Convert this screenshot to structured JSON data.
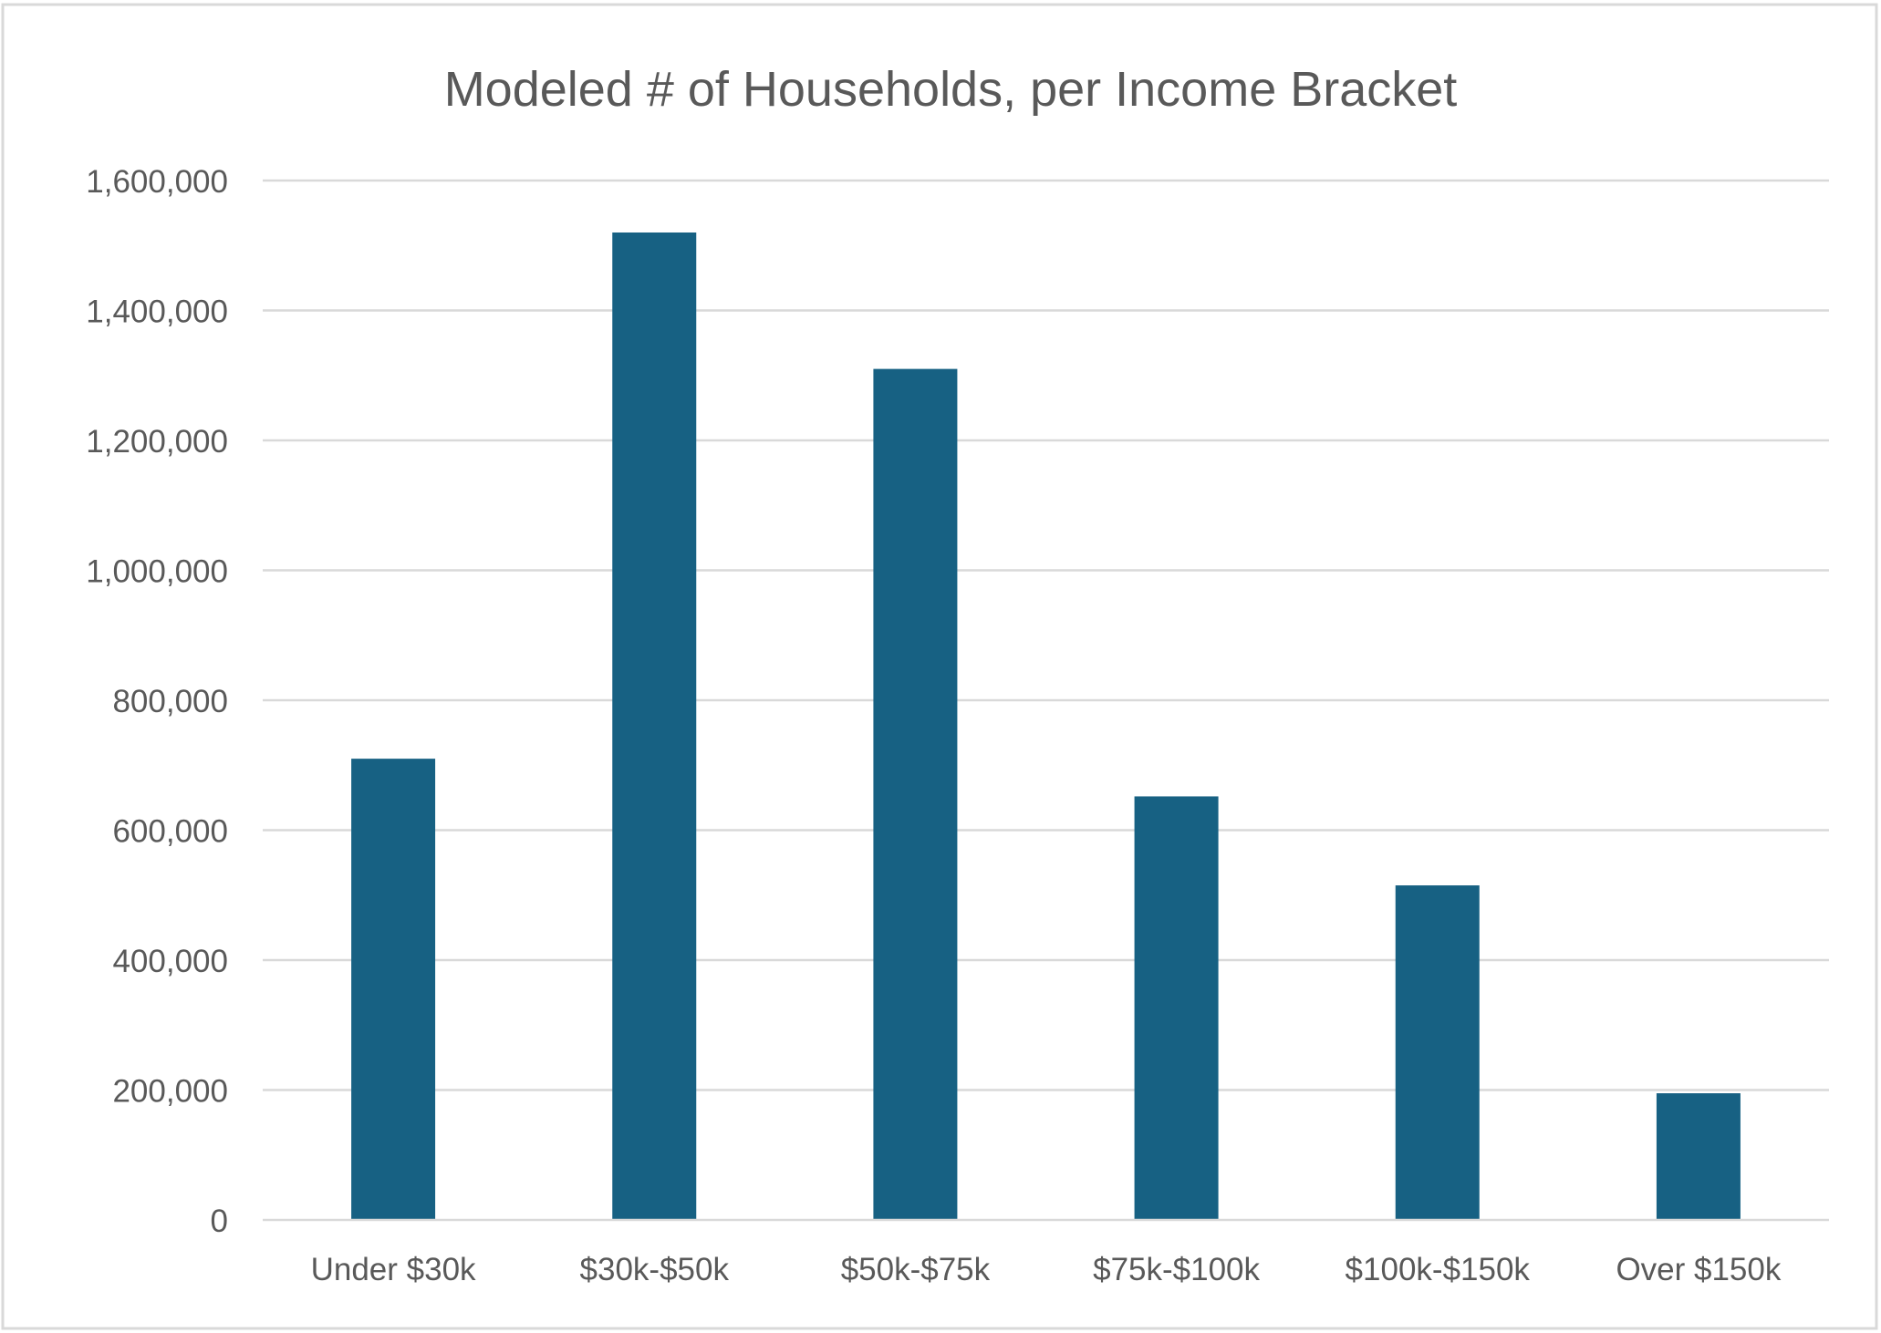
{
  "chart_data": {
    "type": "bar",
    "title": "Modeled # of Households, per Income Bracket",
    "xlabel": "",
    "ylabel": "",
    "categories": [
      "Under $30k",
      "$30k-$50k",
      "$50k-$75k",
      "$75k-$100k",
      "$100k-$150k",
      "Over $150k"
    ],
    "series": [
      {
        "values": [
          710000,
          1520000,
          1310000,
          652000,
          515000,
          195000
        ]
      }
    ],
    "ylim": [
      0,
      1600000
    ],
    "yticks": [
      0,
      200000,
      400000,
      600000,
      800000,
      1000000,
      1200000,
      1400000,
      1600000
    ],
    "ytick_labels": [
      "0",
      "200,000",
      "400,000",
      "600,000",
      "800,000",
      "1,000,000",
      "1,200,000",
      "1,400,000",
      "1,600,000"
    ],
    "grid": true,
    "legend": "none",
    "colors": {
      "bar": "#176183",
      "grid": "#d9d9d9",
      "axis_text": "#595959",
      "title": "#595959",
      "frame": "#d9d9d9"
    }
  }
}
